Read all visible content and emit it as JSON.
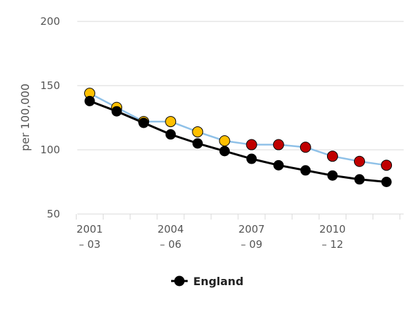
{
  "chart_data": {
    "type": "line",
    "ylabel": "per 100,000",
    "ylim": [
      50,
      200
    ],
    "y_ticks": [
      50,
      100,
      150,
      200
    ],
    "x": [
      "2001 – 03",
      "2002 – 04",
      "2003 – 05",
      "2004 – 06",
      "2005 – 07",
      "2006 – 08",
      "2007 – 09",
      "2008 – 10",
      "2009 – 11",
      "2010 – 12",
      "2011 – 13",
      "2012 – 14"
    ],
    "x_tick_labels": [
      {
        "index": 0,
        "line1": "2001",
        "line2": "– 03"
      },
      {
        "index": 3,
        "line1": "2004",
        "line2": "– 06"
      },
      {
        "index": 6,
        "line1": "2007",
        "line2": "– 09"
      },
      {
        "index": 9,
        "line1": "2010",
        "line2": "– 12"
      }
    ],
    "grid": true,
    "legend_position": "bottom",
    "series": [
      {
        "name": "England",
        "line_color": "#000000",
        "marker_color": "#000000",
        "values": [
          138,
          130,
          121,
          112,
          105,
          99,
          93,
          88,
          84,
          80,
          77,
          75
        ]
      },
      {
        "line_color": "#8fc1e8",
        "values": [
          144,
          133,
          122,
          122,
          114,
          107,
          104,
          104,
          102,
          95,
          91,
          88
        ],
        "marker_colors": [
          "#ffc000",
          "#ffc000",
          "#ffc000",
          "#ffc000",
          "#ffc000",
          "#ffc000",
          "#c00000",
          "#c00000",
          "#c00000",
          "#c00000",
          "#c00000",
          "#c00000"
        ]
      }
    ]
  }
}
